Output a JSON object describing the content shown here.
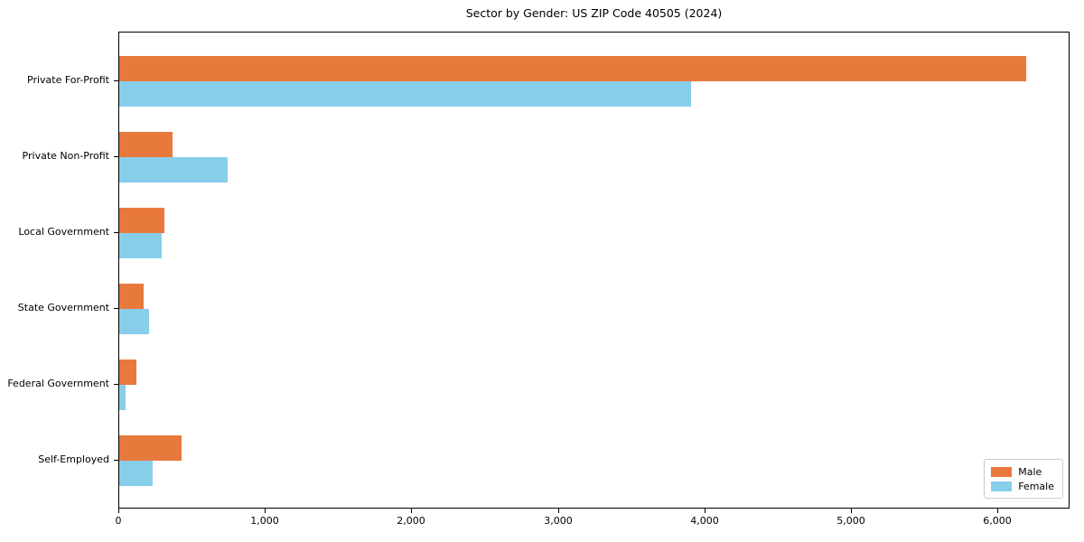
{
  "chart_data": {
    "type": "bar",
    "orientation": "horizontal",
    "title": "Sector by Gender: US ZIP Code 40505 (2024)",
    "categories": [
      "Private For-Profit",
      "Private Non-Profit",
      "Local Government",
      "State Government",
      "Federal Government",
      "Self-Employed"
    ],
    "series": [
      {
        "name": "Male",
        "color": "#e8793d",
        "values": [
          6190,
          365,
          310,
          165,
          115,
          425
        ]
      },
      {
        "name": "Female",
        "color": "#87ceeb",
        "values": [
          3900,
          740,
          290,
          205,
          45,
          230
        ]
      }
    ],
    "xlim": [
      0,
      6490
    ],
    "xticks": [
      0,
      1000,
      2000,
      3000,
      4000,
      5000,
      6000
    ],
    "xtick_labels": [
      "0",
      "1,000",
      "2,000",
      "3,000",
      "4,000",
      "5,000",
      "6,000"
    ],
    "xlabel": "",
    "ylabel": "",
    "grid": false,
    "legend": {
      "position": "lower right",
      "entries": [
        "Male",
        "Female"
      ]
    }
  }
}
